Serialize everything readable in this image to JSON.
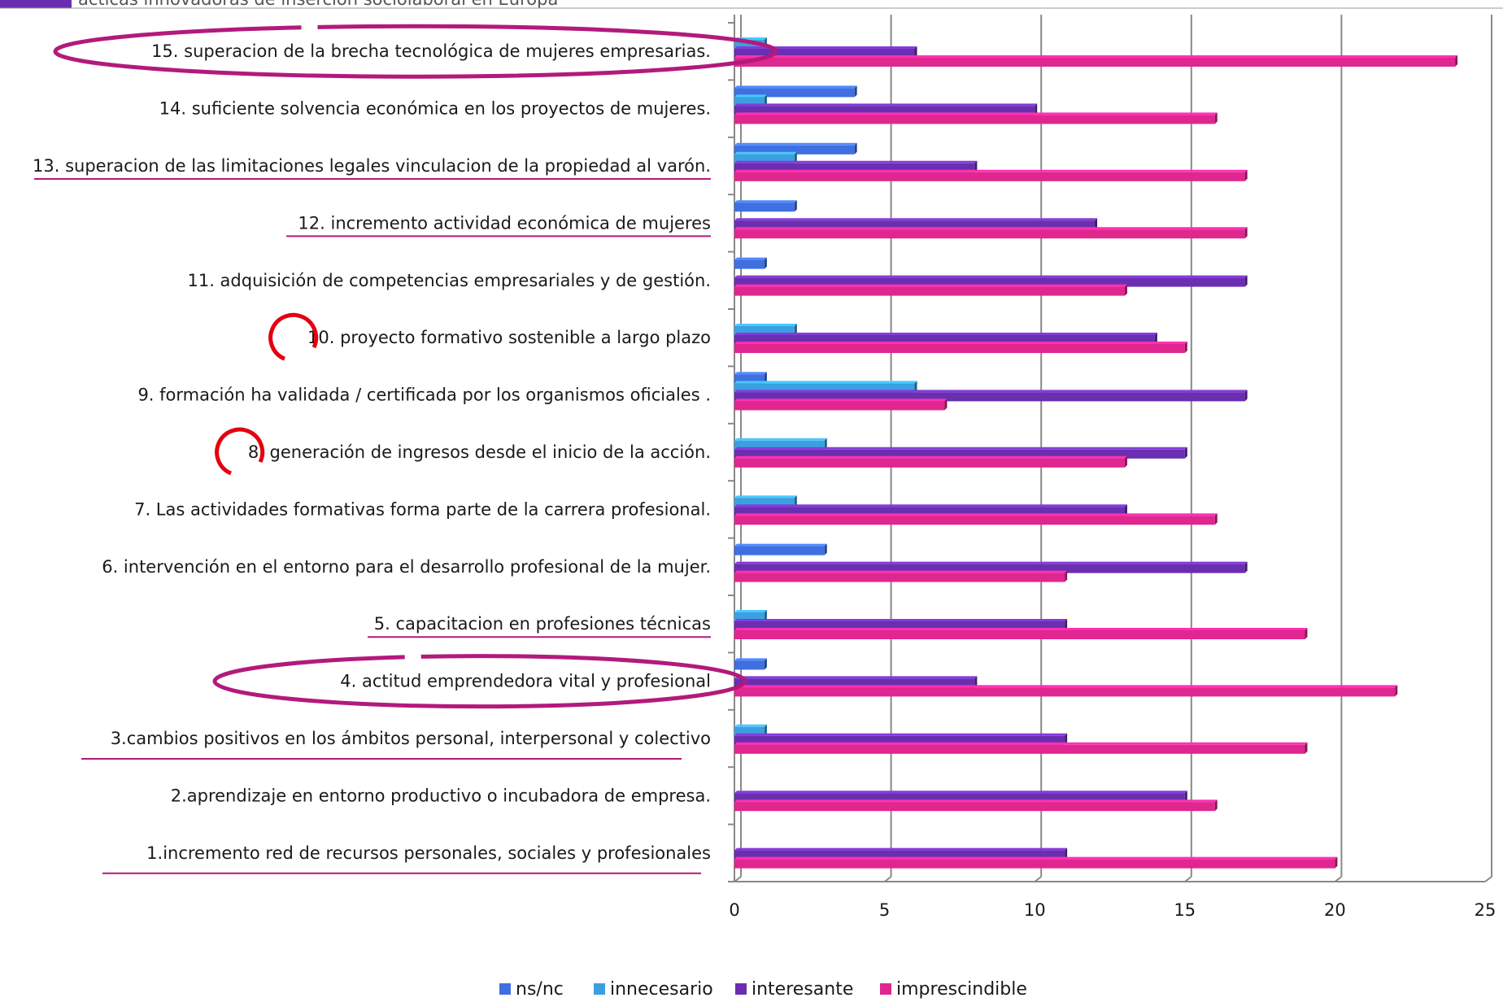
{
  "header": {
    "text": "ácticas innovadoras de inserción sociolaboral en Europa"
  },
  "colors": {
    "ns_nc": "#3f6fe0",
    "innecesario": "#3aa0e0",
    "interesante": "#6a2fb0",
    "imprescindible": "#e0268f",
    "annotation": "#b21a7c",
    "circle": "#e3000f",
    "grid": "#888888"
  },
  "chart_data": {
    "type": "bar",
    "orientation": "horizontal",
    "categories": [
      "15.  superacion  de la brecha tecnológica   de mujeres empresarias.",
      "14.  suficiente solvencia económica en los proyectos de mujeres.",
      "13. superacion de  las limitaciones legales  vinculacion de la propiedad al varón.",
      "12. incremento actividad económica de mujeres",
      "11.   adquisición de competencias empresariales y de gestión.",
      "10. proyecto formativo  sostenible a largo plazo",
      "9. formación ha validada / certificada por los organismos oficiales .",
      "8. generación de ingresos desde el inicio de la acción.",
      "7. Las actividades formativas  forma parte de la carrera profesional.",
      "6. intervención  en el entorno para  el desarrollo profesional de la mujer.",
      "5. capacitacion en profesiones técnicas",
      "4. actitud emprendedora  vital y profesional",
      "3.cambios positivos en los ámbitos personal, interpersonal y colectivo",
      "2.aprendizaje en entorno productivo o incubadora de empresa.",
      "1.incremento red de recursos personales, sociales y profesionales"
    ],
    "series": [
      {
        "name": "ns/nc",
        "color": "#3f6fe0",
        "values": [
          0,
          4,
          4,
          2,
          1,
          0,
          1,
          0,
          0,
          3,
          0,
          1,
          0,
          0,
          0
        ]
      },
      {
        "name": "innecesario",
        "color": "#3aa0e0",
        "values": [
          1,
          1,
          2,
          0,
          0,
          2,
          6,
          3,
          2,
          0,
          1,
          0,
          1,
          0,
          0
        ]
      },
      {
        "name": "interesante",
        "color": "#6a2fb0",
        "values": [
          6,
          10,
          8,
          12,
          17,
          14,
          17,
          15,
          13,
          17,
          11,
          8,
          11,
          15,
          11
        ]
      },
      {
        "name": "imprescindible",
        "color": "#e0268f",
        "values": [
          24,
          16,
          17,
          17,
          13,
          15,
          7,
          13,
          16,
          11,
          19,
          22,
          19,
          16,
          20
        ]
      }
    ],
    "xlim": [
      0,
      25
    ],
    "xticks": [
      "0",
      "5",
      "10",
      "15",
      "20",
      "25"
    ],
    "grid": true,
    "legend_position": "bottom",
    "annotations": {
      "ellipses": [
        0,
        11
      ],
      "circles": [
        5,
        7
      ],
      "underlines": [
        2,
        3,
        10,
        12,
        14
      ]
    }
  }
}
